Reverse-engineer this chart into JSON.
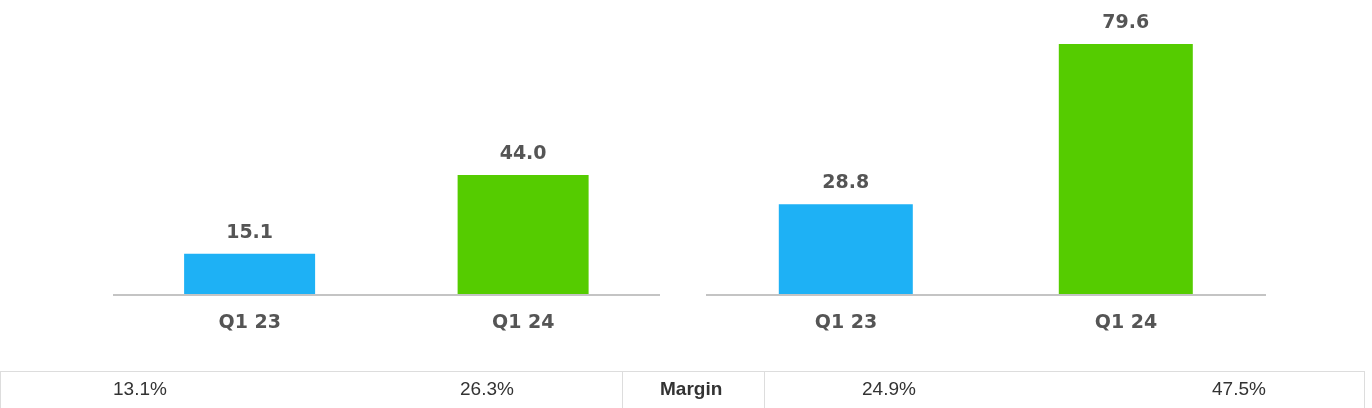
{
  "chart_data": [
    {
      "type": "bar",
      "categories": [
        "Q1 23",
        "Q1 24"
      ],
      "values": [
        15.1,
        44.0
      ],
      "colors": [
        "#1eb1f5",
        "#55cc00"
      ],
      "data_labels": true,
      "value_labels": [
        "15.1",
        "44.0"
      ],
      "annotations": [
        "13.1%",
        "26.3%"
      ]
    },
    {
      "type": "bar",
      "categories": [
        "Q1 23",
        "Q1 24"
      ],
      "values": [
        28.8,
        79.6
      ],
      "colors": [
        "#1eb1f5",
        "#55cc00"
      ],
      "data_labels": true,
      "value_labels": [
        "28.8",
        "79.6"
      ],
      "annotations": [
        "Margin",
        "24.9%",
        "47.5%"
      ]
    }
  ]
}
